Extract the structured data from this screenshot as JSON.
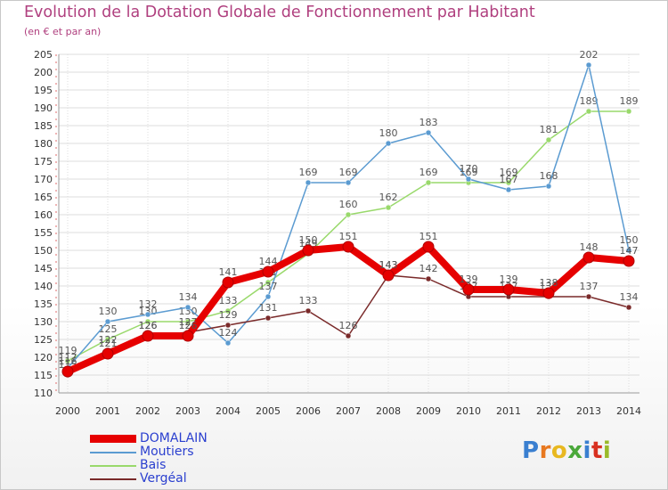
{
  "header": {
    "title": "Evolution de la Dotation Globale de Fonctionnement par Habitant",
    "subtitle": "(en € et par an)"
  },
  "logo": {
    "text": "Proxiti",
    "colors": [
      "#3a7fd0",
      "#e87820",
      "#e8b820",
      "#4aa83a",
      "#3a7fd0",
      "#d83020",
      "#9aba2a"
    ]
  },
  "chart_data": {
    "type": "line",
    "title": "Evolution de la Dotation Globale de Fonctionnement par Habitant",
    "subtitle": "(en € et par an)",
    "xlabel": "",
    "ylabel": "",
    "x": [
      "2000",
      "2001",
      "2002",
      "2003",
      "2004",
      "2005",
      "2006",
      "2007",
      "2008",
      "2009",
      "2010",
      "2011",
      "2012",
      "2013",
      "2014"
    ],
    "ylim": [
      110,
      205
    ],
    "yticks": [
      110,
      115,
      120,
      125,
      130,
      135,
      140,
      145,
      150,
      155,
      160,
      165,
      170,
      175,
      180,
      185,
      190,
      195,
      200,
      205
    ],
    "grid": true,
    "legend_position": "bottom-left",
    "series": [
      {
        "name": "DOMALAIN",
        "color": "#e60000",
        "values": [
          116,
          121,
          126,
          126,
          141,
          144,
          150,
          151,
          143,
          151,
          139,
          139,
          138,
          148,
          147
        ]
      },
      {
        "name": "Moutiers",
        "color": "#5b9bd1",
        "values": [
          117,
          130,
          132,
          134,
          124,
          137,
          169,
          169,
          180,
          183,
          170,
          167,
          168,
          202,
          150
        ]
      },
      {
        "name": "Bais",
        "color": "#99d96b",
        "values": [
          119,
          125,
          130,
          130,
          133,
          141,
          149,
          160,
          162,
          169,
          169,
          169,
          181,
          189,
          189
        ]
      },
      {
        "name": "Vergéal",
        "color": "#7a2a2a",
        "values": [
          115,
          122,
          126,
          127,
          129,
          131,
          133,
          126,
          143,
          142,
          137,
          137,
          137,
          137,
          134
        ]
      }
    ]
  }
}
